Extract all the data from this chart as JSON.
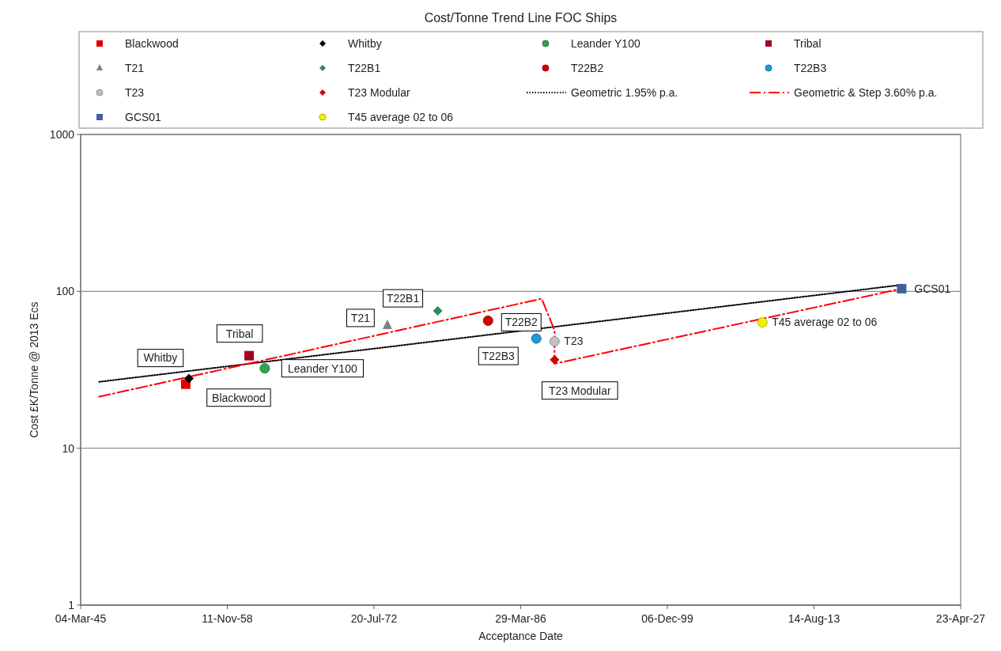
{
  "chart_data": {
    "type": "scatter",
    "title": "Cost/Tonne Trend Line FOC Ships",
    "xlabel": "Acceptance Date",
    "ylabel": "Cost £K/Tonne @ 2013 Ecs",
    "log": "y",
    "grid": "y",
    "legend": "top",
    "xlim": [
      "1945-03-04",
      "2027-04-23"
    ],
    "xticks": [
      {
        "value": "1945-03-04",
        "label": "04-Mar-45"
      },
      {
        "value": "1958-11-11",
        "label": "11-Nov-58"
      },
      {
        "value": "1972-07-20",
        "label": "20-Jul-72"
      },
      {
        "value": "1986-03-29",
        "label": "29-Mar-86"
      },
      {
        "value": "1999-12-06",
        "label": "06-Dec-99"
      },
      {
        "value": "2013-08-14",
        "label": "14-Aug-13"
      },
      {
        "value": "2027-04-23",
        "label": "23-Apr-27"
      }
    ],
    "ylim": [
      1,
      1000
    ],
    "yticks": [
      1,
      10,
      100,
      1000
    ],
    "series": [
      {
        "name": "Blackwood",
        "color": "#e00000",
        "marker": "square",
        "x": [
          "1954-12-25"
        ],
        "values": [
          25.6
        ]
      },
      {
        "name": "Whitby",
        "color": "#000000",
        "marker": "diamond",
        "x": [
          "1955-04-12"
        ],
        "values": [
          27.8
        ]
      },
      {
        "name": "Leander Y100",
        "color": "#2ea44f",
        "marker": "circle",
        "x": [
          "1962-05-11"
        ],
        "values": [
          32.3
        ]
      },
      {
        "name": "Tribal",
        "color": "#a50021",
        "marker": "square",
        "x": [
          "1960-11-24"
        ],
        "values": [
          38.9
        ]
      },
      {
        "name": "T21",
        "color": "#808080",
        "marker": "triangle",
        "x": [
          "1973-10-19"
        ],
        "values": [
          61
        ]
      },
      {
        "name": "T22B1",
        "color": "#2e8b57",
        "marker": "diamond",
        "x": [
          "1978-07-01"
        ],
        "values": [
          75
        ]
      },
      {
        "name": "T22B2",
        "color": "#d40000",
        "marker": "circle",
        "x": [
          "1983-03-14"
        ],
        "values": [
          65
        ]
      },
      {
        "name": "T22B3",
        "color": "#1e9ad6",
        "marker": "circle",
        "x": [
          "1987-09-13"
        ],
        "values": [
          50
        ]
      },
      {
        "name": "T23",
        "color": "#c0c0c0",
        "marker": "circle",
        "x": [
          "1989-05-27"
        ],
        "values": [
          48
        ]
      },
      {
        "name": "T23 Modular",
        "color": "#d40000",
        "marker": "diamond",
        "x": [
          "1989-05-27"
        ],
        "values": [
          36.7
        ]
      },
      {
        "name": "Geometric 1.95% p.a.",
        "type": "line",
        "color": "#000000",
        "line_style": "dotted",
        "marker": "none",
        "x": [
          "1946-11-24",
          "2021-10-19"
        ],
        "values": [
          26.5,
          110
        ]
      },
      {
        "name": "Geometric & Step 3.60% p.a.",
        "type": "line",
        "color": "#ff0000",
        "line_style": "dashed",
        "marker": "none",
        "x": [
          "1946-11-24",
          "1988-03-14",
          "1989-05-27",
          "1989-05-27",
          "2021-10-19"
        ],
        "values": [
          21.3,
          89.8,
          56.5,
          34.6,
          104
        ]
      },
      {
        "name": "GCS01",
        "color": "#4060a0",
        "marker": "square",
        "x": [
          "2021-10-19"
        ],
        "values": [
          104
        ]
      },
      {
        "name": "T45 average 02 to 06",
        "color": "#f0f000",
        "marker": "circle",
        "x": [
          "2008-10-19"
        ],
        "values": [
          63.4
        ]
      }
    ]
  }
}
